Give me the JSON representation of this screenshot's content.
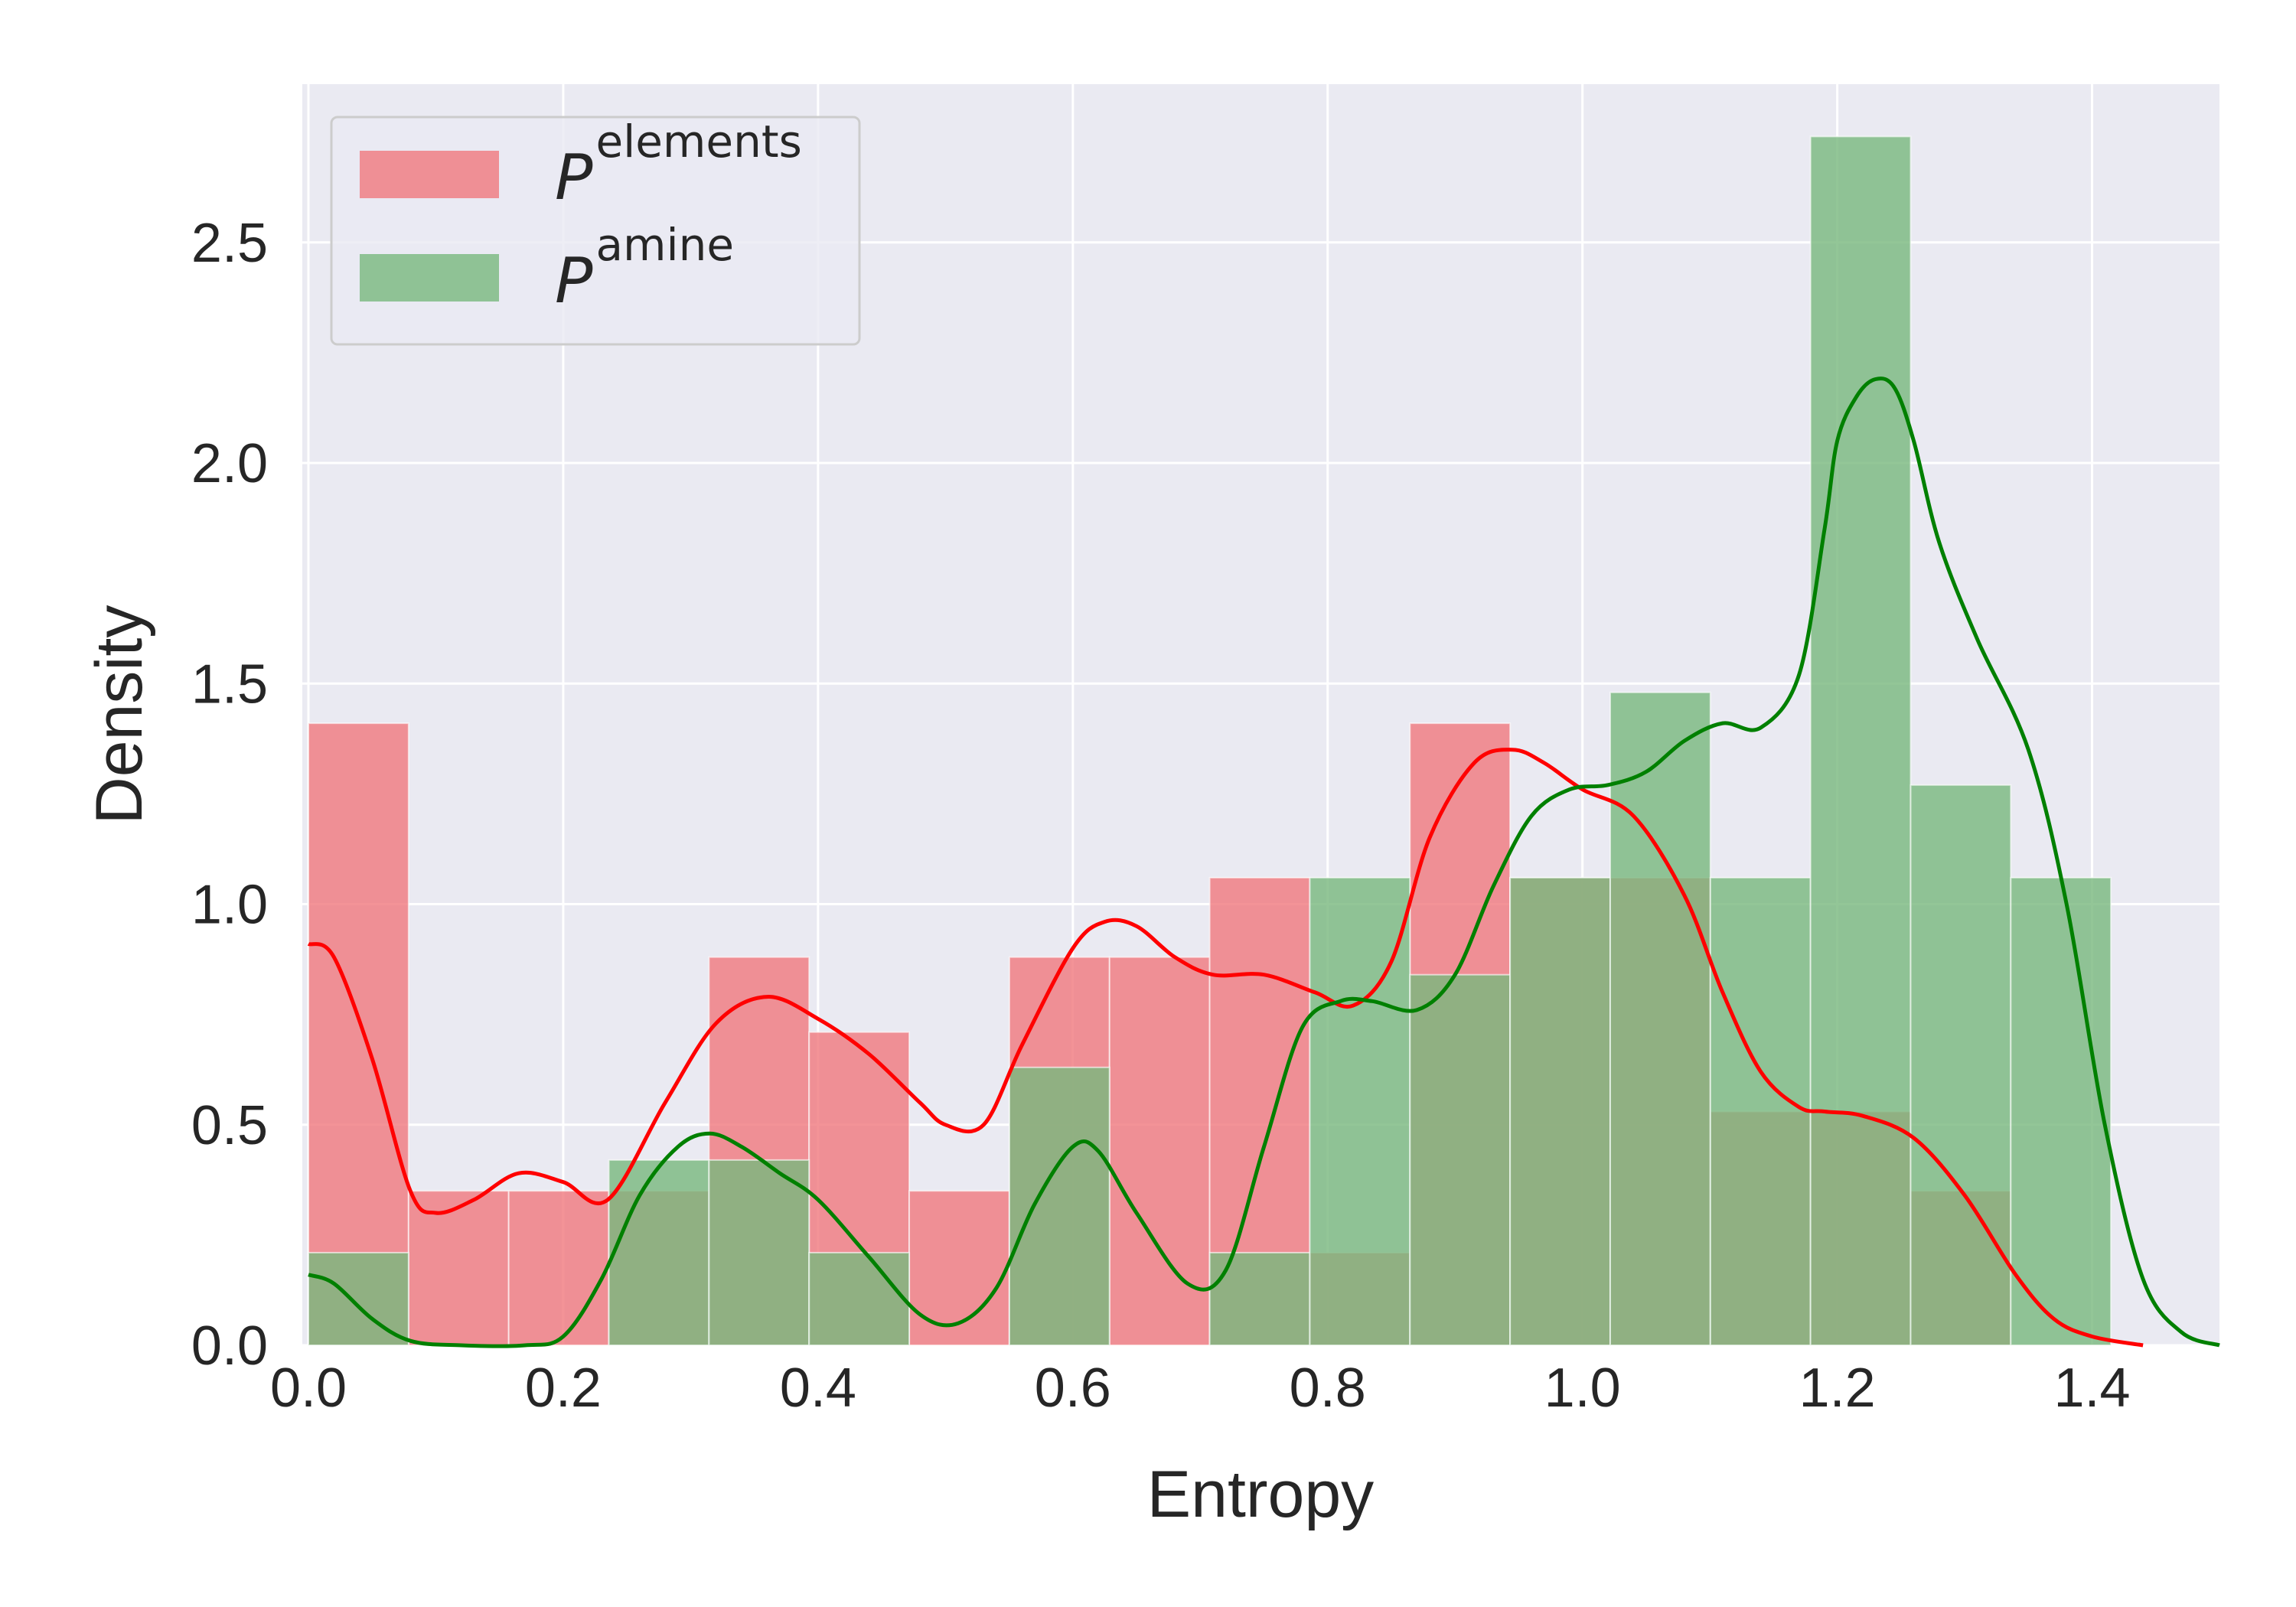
{
  "chart_data": {
    "type": "histogram-kde",
    "xlabel": "Entropy",
    "ylabel": "Density",
    "xlim": [
      0.0,
      1.5
    ],
    "ylim": [
      0.0,
      2.85
    ],
    "xticks": [
      0.0,
      0.2,
      0.4,
      0.6,
      0.8,
      1.0,
      1.2,
      1.4
    ],
    "xtick_labels": [
      "0.0",
      "0.2",
      "0.4",
      "0.6",
      "0.8",
      "1.0",
      "1.2",
      "1.4"
    ],
    "yticks": [
      0.0,
      0.5,
      1.0,
      1.5,
      2.0,
      2.5
    ],
    "ytick_labels": [
      "0.0",
      "0.5",
      "1.0",
      "1.5",
      "2.0",
      "2.5"
    ],
    "grid": true,
    "legend_position": "upper-left",
    "bin_edges": [
      0.0,
      0.0786,
      0.1572,
      0.2358,
      0.3144,
      0.393,
      0.4716,
      0.5502,
      0.6288,
      0.7074,
      0.786,
      0.8646,
      0.9432,
      1.0218,
      1.1004,
      1.179,
      1.2576,
      1.3362,
      1.4148
    ],
    "series": [
      {
        "name": "P",
        "name_superscript": "elements",
        "bar_color": "#f0787d",
        "kde_color": "#ff0000",
        "densities": [
          1.41,
          0.35,
          0.35,
          0.35,
          0.88,
          0.71,
          0.35,
          0.88,
          0.88,
          1.06,
          0.21,
          1.41,
          1.06,
          1.06,
          0.53,
          0.53,
          0.35,
          0.0
        ],
        "kde": {
          "x": [
            0.0,
            0.02,
            0.05,
            0.08,
            0.1,
            0.13,
            0.165,
            0.2,
            0.235,
            0.28,
            0.32,
            0.36,
            0.4,
            0.44,
            0.48,
            0.5,
            0.53,
            0.56,
            0.6,
            0.625,
            0.65,
            0.68,
            0.71,
            0.75,
            0.79,
            0.82,
            0.85,
            0.88,
            0.915,
            0.945,
            0.97,
            1.0,
            1.04,
            1.08,
            1.11,
            1.14,
            1.17,
            1.19,
            1.22,
            1.26,
            1.3,
            1.34,
            1.37,
            1.4,
            1.44
          ],
          "y": [
            0.91,
            0.88,
            0.65,
            0.35,
            0.3,
            0.33,
            0.39,
            0.37,
            0.33,
            0.55,
            0.73,
            0.79,
            0.74,
            0.66,
            0.55,
            0.5,
            0.5,
            0.68,
            0.9,
            0.96,
            0.95,
            0.88,
            0.84,
            0.84,
            0.8,
            0.77,
            0.87,
            1.15,
            1.32,
            1.35,
            1.32,
            1.26,
            1.2,
            1.02,
            0.8,
            0.62,
            0.54,
            0.53,
            0.52,
            0.47,
            0.34,
            0.16,
            0.06,
            0.02,
            0.0
          ]
        }
      },
      {
        "name": "P",
        "name_superscript": "amine",
        "bar_color": "#78b87d",
        "kde_color": "#008000",
        "densities": [
          0.21,
          0.0,
          0.0,
          0.42,
          0.42,
          0.21,
          0.0,
          0.63,
          0.0,
          0.21,
          1.06,
          0.84,
          1.06,
          1.48,
          1.06,
          2.74,
          1.27,
          1.06
        ],
        "kde": {
          "x": [
            0.0,
            0.02,
            0.05,
            0.08,
            0.12,
            0.17,
            0.2,
            0.23,
            0.26,
            0.29,
            0.315,
            0.34,
            0.37,
            0.4,
            0.44,
            0.48,
            0.51,
            0.54,
            0.57,
            0.6,
            0.62,
            0.65,
            0.69,
            0.72,
            0.75,
            0.78,
            0.81,
            0.835,
            0.87,
            0.9,
            0.93,
            0.96,
            0.99,
            1.02,
            1.05,
            1.08,
            1.11,
            1.14,
            1.17,
            1.19,
            1.2,
            1.215,
            1.23,
            1.245,
            1.26,
            1.28,
            1.31,
            1.35,
            1.38,
            1.41,
            1.44,
            1.47,
            1.5
          ],
          "y": [
            0.16,
            0.14,
            0.06,
            0.01,
            0.0,
            0.0,
            0.02,
            0.15,
            0.34,
            0.45,
            0.48,
            0.45,
            0.39,
            0.33,
            0.2,
            0.07,
            0.05,
            0.13,
            0.32,
            0.45,
            0.44,
            0.3,
            0.14,
            0.17,
            0.45,
            0.72,
            0.78,
            0.78,
            0.76,
            0.84,
            1.04,
            1.2,
            1.26,
            1.27,
            1.3,
            1.37,
            1.41,
            1.4,
            1.52,
            1.85,
            2.05,
            2.15,
            2.19,
            2.17,
            2.05,
            1.82,
            1.6,
            1.35,
            1.0,
            0.5,
            0.15,
            0.03,
            0.0
          ]
        }
      }
    ]
  }
}
